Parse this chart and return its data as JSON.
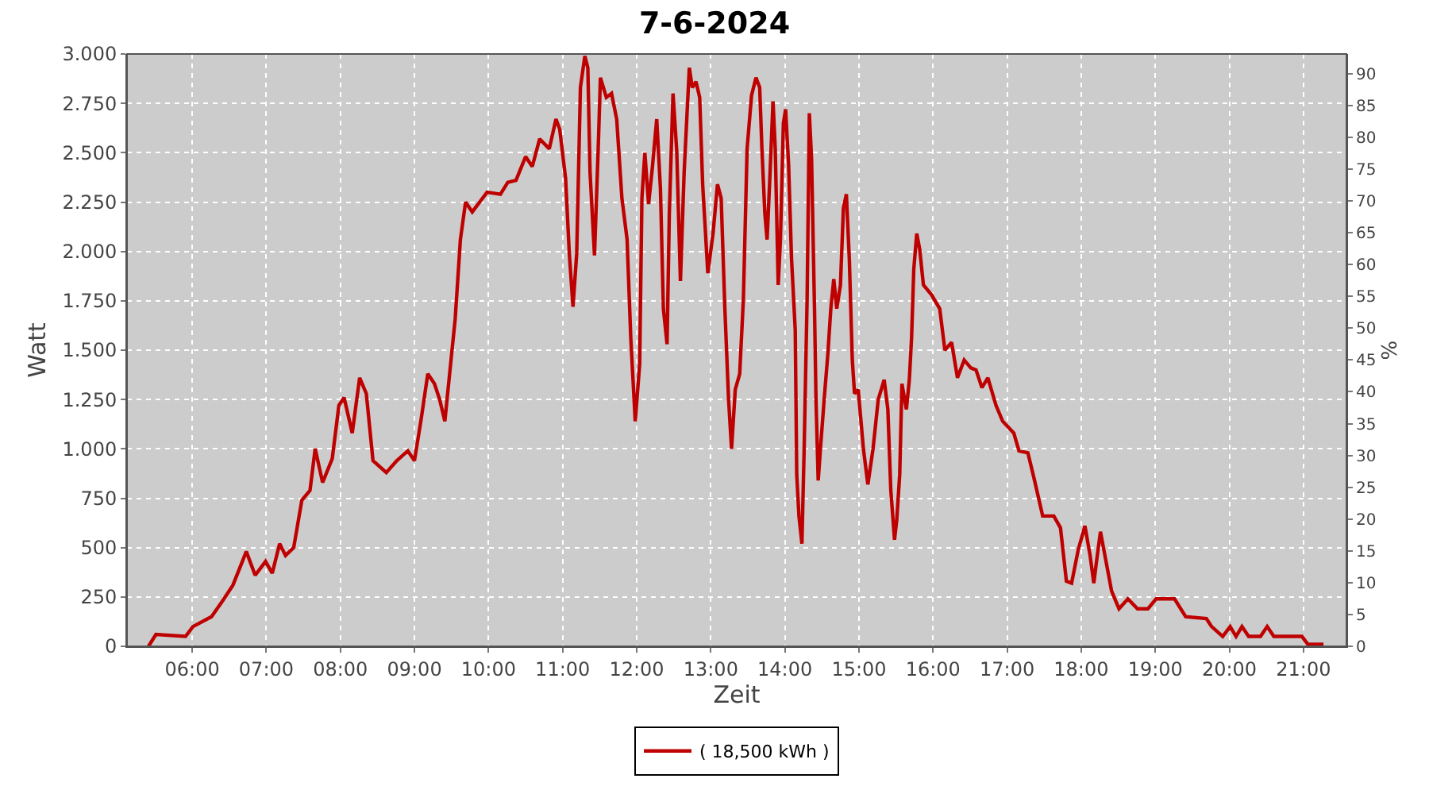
{
  "chart_data": {
    "type": "line",
    "title": "7-6-2024",
    "xlabel": "Zeit",
    "ylabel": "Watt",
    "y2label": "%",
    "x": [
      5.41,
      5.51,
      5.91,
      6.01,
      6.26,
      6.41,
      6.55,
      6.73,
      6.85,
      6.99,
      7.08,
      7.18,
      7.26,
      7.37,
      7.48,
      7.59,
      7.66,
      7.76,
      7.89,
      7.98,
      8.05,
      8.16,
      8.26,
      8.35,
      8.44,
      8.62,
      8.76,
      8.91,
      9.0,
      9.09,
      9.18,
      9.27,
      9.34,
      9.41,
      9.48,
      9.55,
      9.62,
      9.69,
      9.78,
      9.98,
      10.16,
      10.26,
      10.37,
      10.5,
      10.59,
      10.69,
      10.82,
      10.91,
      10.96,
      11.04,
      11.09,
      11.14,
      11.19,
      11.24,
      11.3,
      11.34,
      11.37,
      11.43,
      11.48,
      11.51,
      11.59,
      11.66,
      11.73,
      11.8,
      11.87,
      11.92,
      11.98,
      12.04,
      12.07,
      12.11,
      12.16,
      12.21,
      12.27,
      12.32,
      12.36,
      12.41,
      12.44,
      12.49,
      12.54,
      12.59,
      12.64,
      12.71,
      12.75,
      12.8,
      12.85,
      12.89,
      12.96,
      13.03,
      13.09,
      13.14,
      13.19,
      13.24,
      13.28,
      13.33,
      13.39,
      13.44,
      13.49,
      13.55,
      13.61,
      13.66,
      13.69,
      13.73,
      13.76,
      13.8,
      13.84,
      13.87,
      13.91,
      13.94,
      13.98,
      14.01,
      14.05,
      14.09,
      14.14,
      14.16,
      14.19,
      14.23,
      14.26,
      14.3,
      14.33,
      14.36,
      14.4,
      14.42,
      14.45,
      14.48,
      14.53,
      14.58,
      14.62,
      14.66,
      14.7,
      14.75,
      14.79,
      14.83,
      14.87,
      14.91,
      14.94,
      14.99,
      15.06,
      15.12,
      15.19,
      15.26,
      15.34,
      15.39,
      15.43,
      15.48,
      15.51,
      15.55,
      15.58,
      15.64,
      15.68,
      15.71,
      15.74,
      15.78,
      15.82,
      15.87,
      15.98,
      16.09,
      16.16,
      16.25,
      16.33,
      16.42,
      16.51,
      16.58,
      16.66,
      16.74,
      16.85,
      16.94,
      17.09,
      17.16,
      17.28,
      17.37,
      17.48,
      17.63,
      17.72,
      17.8,
      17.87,
      17.96,
      18.05,
      18.12,
      18.17,
      18.21,
      18.26,
      18.33,
      18.41,
      18.51,
      18.63,
      18.76,
      18.9,
      19.01,
      19.26,
      19.41,
      19.69,
      19.76,
      19.91,
      20.01,
      20.09,
      20.17,
      20.26,
      20.42,
      20.51,
      20.6,
      20.98,
      21.06,
      21.27
    ],
    "series": [
      {
        "name": "( 18,500 kWh )",
        "color": "#bf0000",
        "values": [
          0,
          60,
          50,
          100,
          150,
          230,
          310,
          480,
          360,
          430,
          370,
          520,
          460,
          500,
          740,
          790,
          1000,
          830,
          950,
          1220,
          1260,
          1080,
          1360,
          1280,
          940,
          880,
          940,
          990,
          940,
          1150,
          1380,
          1330,
          1250,
          1140,
          1400,
          1660,
          2060,
          2250,
          2200,
          2300,
          2290,
          2350,
          2360,
          2480,
          2430,
          2570,
          2520,
          2670,
          2620,
          2370,
          1990,
          1720,
          1990,
          2830,
          2990,
          2930,
          2400,
          1980,
          2520,
          2880,
          2780,
          2800,
          2670,
          2270,
          2060,
          1560,
          1140,
          1430,
          2270,
          2500,
          2240,
          2420,
          2670,
          2320,
          1710,
          1530,
          2190,
          2800,
          2510,
          1850,
          2400,
          2930,
          2830,
          2860,
          2780,
          2340,
          1890,
          2090,
          2340,
          2270,
          1710,
          1250,
          1000,
          1300,
          1380,
          1760,
          2520,
          2790,
          2880,
          2830,
          2520,
          2190,
          2060,
          2400,
          2760,
          2520,
          1830,
          2060,
          2650,
          2720,
          2440,
          1960,
          1600,
          870,
          660,
          520,
          1000,
          1760,
          2700,
          2470,
          1710,
          1250,
          840,
          1000,
          1250,
          1480,
          1710,
          1860,
          1710,
          1830,
          2220,
          2290,
          1960,
          1450,
          1280,
          1300,
          1000,
          820,
          1000,
          1250,
          1350,
          1200,
          790,
          540,
          640,
          870,
          1330,
          1200,
          1350,
          1560,
          1910,
          2090,
          2010,
          1830,
          1780,
          1710,
          1500,
          1540,
          1360,
          1450,
          1410,
          1400,
          1310,
          1360,
          1220,
          1140,
          1080,
          990,
          980,
          840,
          660,
          660,
          600,
          330,
          320,
          490,
          610,
          460,
          320,
          440,
          580,
          440,
          280,
          190,
          240,
          190,
          190,
          240,
          240,
          150,
          140,
          100,
          50,
          100,
          50,
          100,
          50,
          50,
          100,
          50,
          50,
          10,
          10
        ]
      }
    ],
    "xlim": [
      5.12,
      21.58
    ],
    "ylim": [
      0,
      3000
    ],
    "y2lim": [
      0,
      93.1
    ],
    "xticks": [
      {
        "value": 6,
        "label": "06:00"
      },
      {
        "value": 7,
        "label": "07:00"
      },
      {
        "value": 8,
        "label": "08:00"
      },
      {
        "value": 9,
        "label": "09:00"
      },
      {
        "value": 10,
        "label": "10:00"
      },
      {
        "value": 11,
        "label": "11:00"
      },
      {
        "value": 12,
        "label": "12:00"
      },
      {
        "value": 13,
        "label": "13:00"
      },
      {
        "value": 14,
        "label": "14:00"
      },
      {
        "value": 15,
        "label": "15:00"
      },
      {
        "value": 16,
        "label": "16:00"
      },
      {
        "value": 17,
        "label": "17:00"
      },
      {
        "value": 18,
        "label": "18:00"
      },
      {
        "value": 19,
        "label": "19:00"
      },
      {
        "value": 20,
        "label": "20:00"
      },
      {
        "value": 21,
        "label": "21:00"
      }
    ],
    "yticks": [
      0,
      250,
      500,
      750,
      {
        "value": 1000,
        "label": "1.000"
      },
      {
        "value": 1250,
        "label": "1.250"
      },
      {
        "value": 1500,
        "label": "1.500"
      },
      {
        "value": 1750,
        "label": "1.750"
      },
      {
        "value": 2000,
        "label": "2.000"
      },
      {
        "value": 2250,
        "label": "2.250"
      },
      {
        "value": 2500,
        "label": "2.500"
      },
      {
        "value": 2750,
        "label": "2.750"
      },
      {
        "value": 3000,
        "label": "3.000"
      }
    ],
    "y2ticks": [
      0,
      5,
      10,
      15,
      20,
      25,
      30,
      35,
      40,
      45,
      50,
      55,
      60,
      65,
      70,
      75,
      80,
      85,
      90
    ],
    "grid": true,
    "legend": "bottom",
    "marker": "none",
    "line_style": "solid"
  }
}
